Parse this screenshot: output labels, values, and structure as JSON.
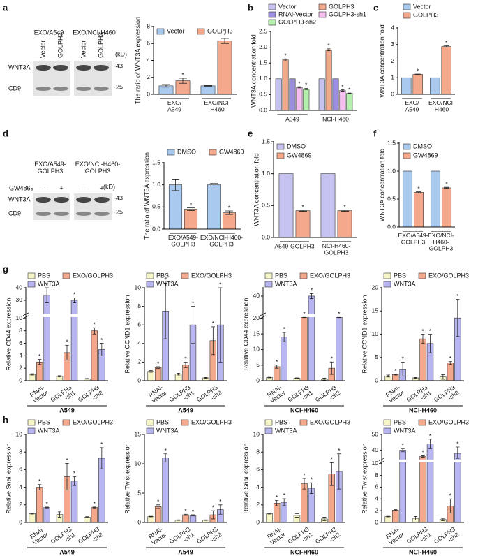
{
  "panels": [
    "a",
    "b",
    "c",
    "d",
    "e",
    "f",
    "g",
    "h"
  ],
  "blots": [
    {
      "headers": [
        "EXO/A549",
        "EXO/NCI-H460"
      ],
      "lanes": [
        "Vector",
        "GOLPH3",
        "Vector",
        "GOLPH3"
      ],
      "rows": [
        "WNT3A",
        "CD9"
      ],
      "markers": [
        "-43",
        "-25"
      ],
      "unit": "(kD)"
    },
    {
      "headers": [
        "EXO/A549-\nGOLPH3",
        "EXO/NCI-H460-\nGOLPH3"
      ],
      "treatment": "GW4869",
      "lanes": [
        "–",
        "+",
        "–",
        "+"
      ],
      "rows": [
        "WNT3A",
        "CD9"
      ],
      "markers": [
        "-43",
        "-25"
      ],
      "unit": "(kD)"
    }
  ],
  "chart_data": [
    {
      "type": "bar",
      "ylabel": "The ratio of WNT3A expression",
      "categories": [
        "EXO/\nA549",
        "EXO/NCI\n-H460"
      ],
      "series": [
        {
          "name": "Vector",
          "color": "#a9c9ee",
          "values": [
            1.0,
            1.0
          ],
          "errors": [
            0.15,
            0.05
          ],
          "significance": [
            null,
            null
          ]
        },
        {
          "name": "GOLPH3",
          "color": "#f4a88c",
          "values": [
            1.6,
            6.3
          ],
          "errors": [
            0.3,
            0.3
          ],
          "significance": [
            "*",
            "*"
          ]
        }
      ],
      "ylim": [
        0,
        8
      ],
      "yticks": [
        0,
        2,
        4,
        6,
        8
      ]
    },
    {
      "type": "bar",
      "ylabel": "WNT3A concentration fold",
      "categories": [
        "A549",
        "NCI-H460"
      ],
      "series": [
        {
          "name": "Vector",
          "color": "#c6c3f0",
          "values": [
            1,
            1
          ],
          "errors": [
            null,
            null
          ],
          "significance": [
            null,
            null
          ]
        },
        {
          "name": "GOLPH3",
          "color": "#f4a88c",
          "values": [
            1.6,
            1.92
          ],
          "errors": [
            0.03,
            0.03
          ],
          "significance": [
            "*",
            "*"
          ]
        },
        {
          "name": "RNAi-Vector",
          "color": "#9c8fe0",
          "values": [
            1,
            1
          ],
          "errors": [
            null,
            null
          ],
          "significance": [
            null,
            null
          ]
        },
        {
          "name": "GOLPH3-sh1",
          "color": "#f7bff0",
          "values": [
            0.73,
            0.63
          ],
          "errors": [
            0.02,
            0.02
          ],
          "significance": [
            "*",
            "*"
          ]
        },
        {
          "name": "GOLPH3-sh2",
          "color": "#b5efae",
          "values": [
            0.68,
            0.54
          ],
          "errors": [
            0.02,
            0.01
          ],
          "significance": [
            "*",
            "*"
          ]
        }
      ],
      "ylim": [
        0,
        2.5
      ],
      "yticks": [
        {
          "value": 0,
          "label": "0.0"
        },
        0.5,
        {
          "value": 1,
          "label": "1.0"
        },
        1.5,
        {
          "value": 2,
          "label": "2.0"
        },
        2.5
      ]
    },
    {
      "type": "bar",
      "ylabel": "WNT3A concentration fold",
      "categories": [
        "EXO/\nA549",
        "EXO/NCI\n-H460"
      ],
      "series": [
        {
          "name": "Vector",
          "color": "#a9c9ee",
          "values": [
            1,
            1
          ],
          "errors": [
            null,
            null
          ],
          "significance": [
            null,
            null
          ]
        },
        {
          "name": "GOLPH3",
          "color": "#f4a88c",
          "values": [
            1.2,
            2.88
          ],
          "errors": [
            0.02,
            0.04
          ],
          "significance": [
            "*",
            "*"
          ]
        }
      ],
      "ylim": [
        0,
        4
      ],
      "yticks": [
        0,
        1,
        2,
        3,
        4
      ]
    },
    {
      "type": "bar",
      "ylabel": "The ratio of WNT3A expression",
      "categories": [
        "EXO/A549-\nGOLPH3",
        "EXO/NCI-H460-\nGOLPH3"
      ],
      "series": [
        {
          "name": "DMSO",
          "color": "#a9c9ee",
          "values": [
            1.0,
            1.0
          ],
          "errors": [
            0.13,
            0.03
          ],
          "significance": [
            null,
            null
          ]
        },
        {
          "name": "GW4869",
          "color": "#f4a88c",
          "values": [
            0.45,
            0.37
          ],
          "errors": [
            0.03,
            0.04
          ],
          "significance": [
            "*",
            "*"
          ]
        }
      ],
      "ylim": [
        0,
        1.5
      ],
      "yticks": [
        {
          "value": 0,
          "label": "0.0"
        },
        0.5,
        {
          "value": 1,
          "label": "1.0"
        },
        1.5
      ]
    },
    {
      "type": "bar",
      "ylabel": "WNT3A concentration fold",
      "categories": [
        "A549-GOLPH3",
        "NCI-H460-\nGOLPH3"
      ],
      "series": [
        {
          "name": "DMSO",
          "color": "#c6c3f0",
          "values": [
            1,
            1
          ],
          "errors": [
            null,
            null
          ],
          "significance": [
            null,
            null
          ]
        },
        {
          "name": "GW4869",
          "color": "#f4a88c",
          "values": [
            0.42,
            0.42
          ],
          "errors": [
            0.01,
            0.01
          ],
          "significance": [
            "*",
            "*"
          ]
        }
      ],
      "ylim": [
        0,
        1.5
      ],
      "yticks": [
        {
          "value": 0,
          "label": "0.0"
        },
        0.5,
        {
          "value": 1,
          "label": "1.0"
        },
        1.5
      ]
    },
    {
      "type": "bar",
      "ylabel": "WNT3A concentration fold",
      "categories": [
        "EXO/A549-\nGOLPH3",
        "EXO/NCI-\nH460-\nGOLPH3"
      ],
      "series": [
        {
          "name": "DMSO",
          "color": "#a9c9ee",
          "values": [
            1,
            1
          ],
          "errors": [
            null,
            null
          ],
          "significance": [
            null,
            null
          ]
        },
        {
          "name": "GW4869",
          "color": "#f4a88c",
          "values": [
            0.62,
            0.7
          ],
          "errors": [
            0.01,
            0.01
          ],
          "significance": [
            "*",
            "*"
          ]
        }
      ],
      "ylim": [
        0,
        1.5
      ],
      "yticks": [
        {
          "value": 0,
          "label": "0.0"
        },
        0.5,
        {
          "value": 1,
          "label": "1.0"
        },
        1.5
      ]
    },
    {
      "type": "bar",
      "ylabel": "Relative CD44 expression",
      "xlabel": "A549",
      "categories": [
        "RNAi-\nVector",
        "GOLPH3\n-sh1",
        "GOLPH3\n-sh2"
      ],
      "series": [
        {
          "name": "PBS",
          "color": "#f6f6c9",
          "values": [
            1,
            0.7,
            0.3
          ],
          "errors": [
            0.1,
            0.1,
            0.05
          ],
          "significance": [
            null,
            null,
            null
          ]
        },
        {
          "name": "EXO/GOLPH3",
          "color": "#f4a88c",
          "values": [
            3,
            4.5,
            8
          ],
          "errors": [
            0.4,
            1.2,
            0.5
          ],
          "significance": [
            "*",
            "*",
            "*"
          ]
        },
        {
          "name": "WNT3A",
          "color": "#b8b6f2",
          "values": [
            34,
            30,
            5
          ],
          "errors": [
            6,
            2,
            1
          ],
          "significance": [
            "*",
            "*",
            "*"
          ]
        }
      ],
      "ylim": [
        0,
        40
      ],
      "ybreak": [
        10,
        20
      ],
      "yticks": [
        0,
        2,
        4,
        6,
        8,
        10,
        30,
        40
      ]
    },
    {
      "type": "bar",
      "ylabel": "Relative CCND1 expression",
      "xlabel": "A549",
      "categories": [
        "RNAi-\nVector",
        "GOLPH3\n-sh1",
        "GOLPH3\n-sh2"
      ],
      "series": [
        {
          "name": "PBS",
          "color": "#f6f6c9",
          "values": [
            1,
            0.7,
            0.3
          ],
          "errors": [
            0.1,
            0.1,
            0.05
          ],
          "significance": [
            null,
            null,
            null
          ]
        },
        {
          "name": "EXO/GOLPH3",
          "color": "#f4a88c",
          "values": [
            1.4,
            1.7,
            4.3
          ],
          "errors": [
            0.1,
            0.3,
            1.5
          ],
          "significance": [
            "*",
            "*",
            "*"
          ]
        },
        {
          "name": "WNT3A",
          "color": "#b8b6f2",
          "values": [
            7.5,
            6,
            6
          ],
          "errors": [
            3,
            2,
            4
          ],
          "significance": [
            "*",
            "*",
            "*"
          ]
        }
      ],
      "ylim": [
        0,
        10
      ],
      "yticks": [
        0,
        2,
        4,
        6,
        8,
        10
      ]
    },
    {
      "type": "bar",
      "ylabel": "Relative CD44 expression",
      "xlabel": "NCI-H460",
      "categories": [
        "RNAi-\nVector",
        "GOLPH3\n-sh1",
        "GOLPH3\n-sh2"
      ],
      "series": [
        {
          "name": "PBS",
          "color": "#f6f6c9",
          "values": [
            1,
            0.8,
            0.5
          ],
          "errors": [
            0.1,
            0.1,
            0.3
          ],
          "significance": [
            null,
            null,
            null
          ]
        },
        {
          "name": "EXO/GOLPH3",
          "color": "#f4a88c",
          "values": [
            4.5,
            22,
            4
          ],
          "errors": [
            0.5,
            0.5,
            2
          ],
          "significance": [
            "*",
            "*",
            "*"
          ]
        },
        {
          "name": "WNT3A",
          "color": "#b8b6f2",
          "values": [
            14,
            40,
            22
          ],
          "errors": [
            1.5,
            1.5,
            0.5
          ],
          "significance": [
            "*",
            "*",
            "*"
          ]
        }
      ],
      "ylim": [
        0,
        45
      ],
      "ybreak": [
        20,
        30
      ],
      "yticks": [
        0,
        5,
        10,
        15,
        20,
        40
      ]
    },
    {
      "type": "bar",
      "ylabel": "Relative CCND1 expression",
      "xlabel": "NCI-H460",
      "categories": [
        "RNAi-\nVector",
        "GOLPH3\n-sh1",
        "GOLPH3\n-sh2"
      ],
      "series": [
        {
          "name": "PBS",
          "color": "#f6f6c9",
          "values": [
            1,
            0.6,
            0.8
          ],
          "errors": [
            0.2,
            0.1,
            0.5
          ],
          "significance": [
            null,
            null,
            null
          ]
        },
        {
          "name": "EXO/GOLPH3",
          "color": "#f4a88c",
          "values": [
            1.3,
            9,
            3.8
          ],
          "errors": [
            0.1,
            1,
            0.3
          ],
          "significance": [
            "*",
            "*",
            "*"
          ]
        },
        {
          "name": "WNT3A",
          "color": "#b8b6f2",
          "values": [
            2.5,
            8,
            13.5
          ],
          "errors": [
            1.5,
            2,
            4
          ],
          "significance": [
            "*",
            "*",
            "*"
          ]
        }
      ],
      "ylim": [
        0,
        20
      ],
      "yticks": [
        0,
        5,
        10,
        15,
        20
      ]
    },
    {
      "type": "bar",
      "ylabel": "Relative Snail expression",
      "xlabel": "A549",
      "categories": [
        "RNAi-\nVector",
        "GOLPH3\n-sh1",
        "GOLPH3\n-sh2"
      ],
      "series": [
        {
          "name": "PBS",
          "color": "#f6f6c9",
          "values": [
            1,
            0.9,
            0.6
          ],
          "errors": [
            0.05,
            0.3,
            0.05
          ],
          "significance": [
            null,
            null,
            null
          ]
        },
        {
          "name": "EXO/GOLPH3",
          "color": "#f4a88c",
          "values": [
            4,
            5.2,
            1.7
          ],
          "errors": [
            0.3,
            1.5,
            0.05
          ],
          "significance": [
            "*",
            "*",
            "*"
          ]
        },
        {
          "name": "WNT3A",
          "color": "#b8b6f2",
          "values": [
            1.7,
            4.7,
            7.3
          ],
          "errors": [
            0.05,
            0.5,
            1.2
          ],
          "significance": [
            "*",
            "*",
            "*"
          ]
        }
      ],
      "ylim": [
        0,
        10
      ],
      "yticks": [
        0,
        2,
        4,
        6,
        8,
        10
      ]
    },
    {
      "type": "bar",
      "ylabel": "Relative Twist expression",
      "xlabel": "A549",
      "categories": [
        "RNAi-\nVector",
        "GOLPH3\n-sh1",
        "GOLPH3\n-sh2"
      ],
      "series": [
        {
          "name": "PBS",
          "color": "#f6f6c9",
          "values": [
            1,
            0.4,
            0.4
          ],
          "errors": [
            0.05,
            0.05,
            0.05
          ],
          "significance": [
            null,
            null,
            null
          ]
        },
        {
          "name": "EXO/GOLPH3",
          "color": "#f4a88c",
          "values": [
            2.7,
            1.3,
            1.3
          ],
          "errors": [
            0.3,
            0.1,
            0.7
          ],
          "significance": [
            "*",
            "*",
            "*"
          ]
        },
        {
          "name": "WNT3A",
          "color": "#b8b6f2",
          "values": [
            11,
            1.2,
            2.2
          ],
          "errors": [
            0.7,
            0.1,
            0.8
          ],
          "significance": [
            "*",
            "*",
            "*"
          ]
        }
      ],
      "ylim": [
        0,
        15
      ],
      "yticks": [
        0,
        5,
        10,
        15
      ]
    },
    {
      "type": "bar",
      "ylabel": "Relative Snail expression",
      "xlabel": "NCI-H460",
      "categories": [
        "RNAi-\nVector",
        "GOLPH3\n-sh1",
        "GOLPH3\n-sh2"
      ],
      "series": [
        {
          "name": "PBS",
          "color": "#f6f6c9",
          "values": [
            1,
            0.8,
            0.4
          ],
          "errors": [
            0.05,
            0.2,
            0.2
          ],
          "significance": [
            null,
            null,
            null
          ]
        },
        {
          "name": "EXO/GOLPH3",
          "color": "#f4a88c",
          "values": [
            2.2,
            4.4,
            5.5
          ],
          "errors": [
            0.3,
            0.6,
            1.3
          ],
          "significance": [
            "*",
            "*",
            "*"
          ]
        },
        {
          "name": "WNT3A",
          "color": "#b8b6f2",
          "values": [
            2.3,
            3.9,
            5.8
          ],
          "errors": [
            0.4,
            0.6,
            2
          ],
          "significance": [
            "*",
            "*",
            "*"
          ]
        }
      ],
      "ylim": [
        0,
        10
      ],
      "yticks": [
        0,
        2,
        4,
        6,
        8,
        10
      ]
    },
    {
      "type": "bar",
      "ylabel": "Relative Twist expression",
      "xlabel": "NCI-H460",
      "categories": [
        "RNAi-\nVector",
        "GOLPH3\n-sh1",
        "GOLPH3\n-sh2"
      ],
      "series": [
        {
          "name": "PBS",
          "color": "#f6f6c9",
          "values": [
            1,
            0.7,
            0.5
          ],
          "errors": [
            0.05,
            0.3,
            0.2
          ],
          "significance": [
            null,
            null,
            null
          ]
        },
        {
          "name": "EXO/GOLPH3",
          "color": "#f4a88c",
          "values": [
            2.1,
            36,
            2.8
          ],
          "errors": [
            0.1,
            0.5,
            1.2
          ],
          "significance": [
            null,
            "*",
            "*"
          ]
        },
        {
          "name": "WNT3A",
          "color": "#b8b6f2",
          "values": [
            40,
            44,
            38
          ],
          "errors": [
            1,
            3,
            4
          ],
          "significance": [
            "*",
            "*",
            "*"
          ]
        }
      ],
      "ylim": [
        0,
        50
      ],
      "ybreak": [
        10,
        35
      ],
      "yticks": [
        0,
        2,
        4,
        6,
        8,
        10,
        40,
        50
      ]
    }
  ]
}
